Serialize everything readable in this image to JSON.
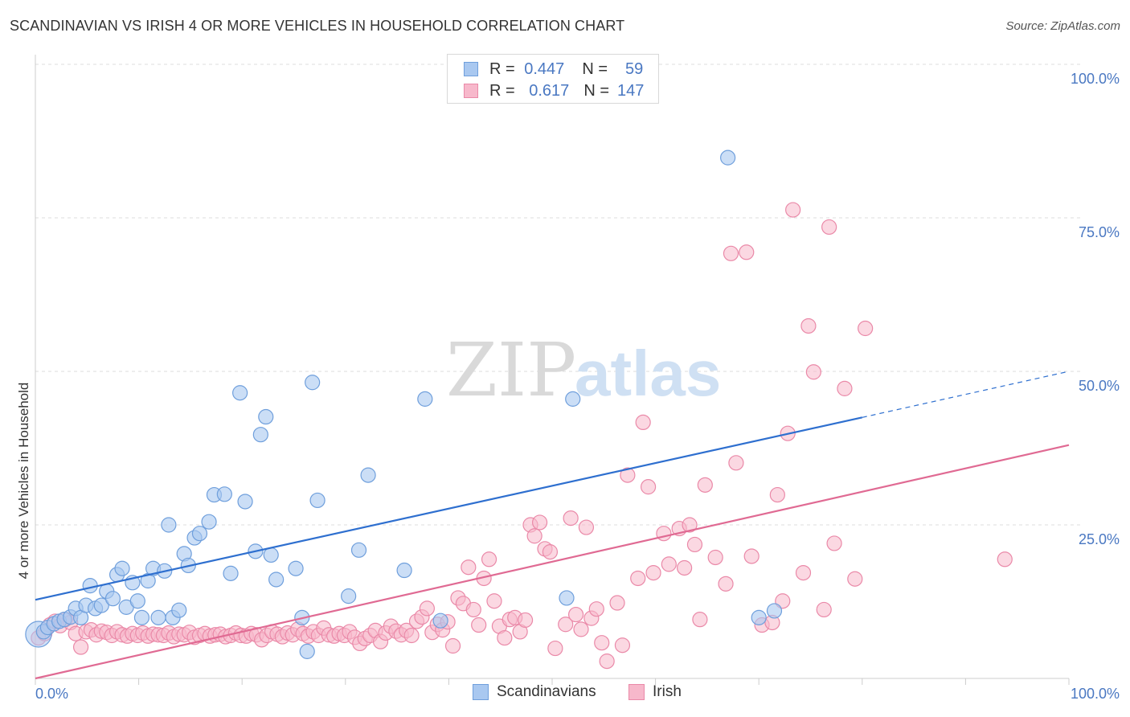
{
  "title": "SCANDINAVIAN VS IRISH 4 OR MORE VEHICLES IN HOUSEHOLD CORRELATION CHART",
  "source": "Source: ZipAtlas.com",
  "watermark": {
    "zip": "ZIP",
    "atlas": "atlas"
  },
  "legend": {
    "rows": [
      {
        "r_label": "R =",
        "r_value": "0.447",
        "n_label": "N =",
        "n_value": "59"
      },
      {
        "r_label": "R =",
        "r_value": "0.617",
        "n_label": "N =",
        "n_value": "147"
      }
    ]
  },
  "bottom_legend": {
    "series1": "Scandinavians",
    "series2": "Irish"
  },
  "colors": {
    "blue_fill": "#a9c8f0",
    "blue_stroke": "#6f9fdc",
    "blue_line": "#2e6fcf",
    "pink_fill": "#f7b8cb",
    "pink_stroke": "#ea89a8",
    "pink_line": "#e06a93",
    "grid": "#dddddd",
    "tick_text": "#4a78c2"
  },
  "chart_data": {
    "type": "scatter",
    "title": "SCANDINAVIAN VS IRISH 4 OR MORE VEHICLES IN HOUSEHOLD CORRELATION CHART",
    "xlabel": "",
    "ylabel": "4 or more Vehicles in Household",
    "xlim": [
      0,
      100
    ],
    "ylim": [
      0,
      100
    ],
    "x_tick_labels": [
      "0.0%",
      "100.0%"
    ],
    "y_tick_labels": [
      "100.0%",
      "75.0%",
      "50.0%",
      "25.0%"
    ],
    "y_ticks": [
      100,
      75,
      50,
      25
    ],
    "grid": true,
    "legend_position": "top-center",
    "series": [
      {
        "name": "Scandinavians",
        "R": 0.447,
        "N": 59,
        "trend": {
          "x0": 0,
          "y0": 12.8,
          "x1": 80,
          "y1": 42.5,
          "dashed_to_x": 100,
          "dashed_to_y": 50.0
        },
        "points": [
          [
            0.3,
            7.2
          ],
          [
            0.8,
            7.6
          ],
          [
            1.2,
            8.3
          ],
          [
            1.8,
            8.9
          ],
          [
            2.3,
            9.3
          ],
          [
            2.8,
            9.6
          ],
          [
            3.4,
            10.0
          ],
          [
            3.9,
            11.4
          ],
          [
            4.4,
            9.9
          ],
          [
            4.9,
            11.9
          ],
          [
            5.3,
            15.1
          ],
          [
            5.8,
            11.4
          ],
          [
            6.4,
            11.9
          ],
          [
            6.9,
            14.2
          ],
          [
            7.5,
            13.0
          ],
          [
            7.9,
            16.9
          ],
          [
            8.4,
            17.9
          ],
          [
            8.8,
            11.6
          ],
          [
            9.4,
            15.6
          ],
          [
            9.9,
            12.6
          ],
          [
            10.3,
            9.9
          ],
          [
            10.9,
            15.9
          ],
          [
            11.4,
            17.9
          ],
          [
            11.9,
            9.9
          ],
          [
            12.5,
            17.5
          ],
          [
            12.9,
            25.0
          ],
          [
            13.3,
            9.9
          ],
          [
            13.9,
            11.1
          ],
          [
            14.4,
            20.3
          ],
          [
            14.8,
            18.4
          ],
          [
            15.4,
            22.9
          ],
          [
            15.9,
            23.6
          ],
          [
            16.8,
            25.5
          ],
          [
            17.3,
            29.9
          ],
          [
            18.3,
            30.0
          ],
          [
            18.9,
            17.1
          ],
          [
            19.8,
            46.5
          ],
          [
            20.3,
            28.8
          ],
          [
            21.3,
            20.7
          ],
          [
            21.8,
            39.7
          ],
          [
            22.3,
            42.6
          ],
          [
            22.8,
            20.1
          ],
          [
            23.3,
            16.1
          ],
          [
            25.2,
            17.9
          ],
          [
            25.8,
            9.9
          ],
          [
            26.8,
            48.2
          ],
          [
            26.3,
            4.4
          ],
          [
            27.3,
            29.0
          ],
          [
            30.3,
            13.4
          ],
          [
            31.3,
            20.9
          ],
          [
            32.2,
            33.1
          ],
          [
            35.7,
            17.6
          ],
          [
            37.7,
            45.5
          ],
          [
            39.2,
            9.4
          ],
          [
            51.4,
            13.1
          ],
          [
            52.0,
            45.5
          ],
          [
            67.0,
            84.8
          ],
          [
            70.0,
            9.9
          ],
          [
            71.5,
            11.0
          ]
        ]
      },
      {
        "name": "Irish",
        "R": 0.617,
        "N": 147,
        "trend": {
          "x0": 0,
          "y0": 0.0,
          "x1": 100,
          "y1": 38.0
        },
        "points": [
          [
            0.3,
            6.6
          ],
          [
            0.9,
            7.3
          ],
          [
            1.4,
            8.7
          ],
          [
            1.9,
            9.3
          ],
          [
            2.4,
            8.6
          ],
          [
            2.9,
            9.6
          ],
          [
            3.4,
            9.1
          ],
          [
            3.9,
            7.3
          ],
          [
            4.4,
            5.1
          ],
          [
            4.9,
            7.6
          ],
          [
            5.4,
            7.9
          ],
          [
            5.9,
            7.1
          ],
          [
            6.4,
            7.7
          ],
          [
            6.9,
            7.5
          ],
          [
            7.4,
            7.0
          ],
          [
            7.9,
            7.6
          ],
          [
            8.4,
            7.1
          ],
          [
            8.9,
            6.9
          ],
          [
            9.4,
            7.3
          ],
          [
            9.9,
            7.0
          ],
          [
            10.4,
            7.4
          ],
          [
            10.9,
            6.9
          ],
          [
            11.4,
            7.2
          ],
          [
            11.9,
            7.1
          ],
          [
            12.4,
            7.0
          ],
          [
            12.9,
            7.4
          ],
          [
            13.4,
            6.8
          ],
          [
            13.9,
            7.2
          ],
          [
            14.4,
            7.1
          ],
          [
            14.9,
            7.5
          ],
          [
            15.4,
            6.7
          ],
          [
            15.9,
            7.0
          ],
          [
            16.4,
            7.3
          ],
          [
            16.9,
            6.9
          ],
          [
            17.4,
            7.1
          ],
          [
            17.9,
            7.2
          ],
          [
            18.4,
            6.8
          ],
          [
            18.9,
            7.0
          ],
          [
            19.4,
            7.4
          ],
          [
            19.9,
            7.0
          ],
          [
            20.4,
            6.9
          ],
          [
            20.9,
            7.3
          ],
          [
            21.4,
            7.1
          ],
          [
            21.9,
            6.3
          ],
          [
            22.4,
            7.0
          ],
          [
            22.9,
            7.6
          ],
          [
            23.4,
            7.2
          ],
          [
            23.9,
            6.8
          ],
          [
            24.4,
            7.4
          ],
          [
            24.9,
            7.1
          ],
          [
            25.4,
            8.0
          ],
          [
            25.9,
            7.3
          ],
          [
            26.4,
            6.9
          ],
          [
            26.9,
            7.6
          ],
          [
            27.4,
            7.0
          ],
          [
            27.9,
            8.2
          ],
          [
            28.4,
            7.1
          ],
          [
            28.9,
            6.9
          ],
          [
            29.4,
            7.3
          ],
          [
            29.9,
            7.0
          ],
          [
            30.4,
            7.6
          ],
          [
            30.9,
            6.7
          ],
          [
            31.4,
            5.7
          ],
          [
            31.9,
            6.5
          ],
          [
            32.4,
            7.0
          ],
          [
            32.9,
            7.8
          ],
          [
            33.4,
            6.0
          ],
          [
            33.9,
            7.4
          ],
          [
            34.4,
            8.5
          ],
          [
            34.9,
            7.7
          ],
          [
            35.4,
            7.1
          ],
          [
            35.9,
            7.8
          ],
          [
            36.4,
            7.0
          ],
          [
            36.9,
            9.3
          ],
          [
            37.4,
            10.0
          ],
          [
            37.9,
            11.4
          ],
          [
            38.4,
            7.5
          ],
          [
            38.9,
            8.8
          ],
          [
            39.4,
            7.9
          ],
          [
            39.9,
            9.2
          ],
          [
            40.4,
            5.3
          ],
          [
            40.9,
            13.1
          ],
          [
            41.4,
            12.2
          ],
          [
            41.9,
            18.1
          ],
          [
            42.4,
            11.2
          ],
          [
            42.9,
            8.7
          ],
          [
            43.4,
            16.3
          ],
          [
            43.9,
            19.4
          ],
          [
            44.4,
            12.6
          ],
          [
            44.9,
            8.5
          ],
          [
            45.4,
            6.6
          ],
          [
            45.9,
            9.6
          ],
          [
            46.4,
            9.9
          ],
          [
            46.9,
            7.6
          ],
          [
            47.4,
            9.5
          ],
          [
            47.9,
            25.0
          ],
          [
            48.3,
            23.2
          ],
          [
            48.8,
            25.4
          ],
          [
            49.3,
            21.1
          ],
          [
            49.8,
            20.6
          ],
          [
            50.3,
            4.9
          ],
          [
            51.3,
            8.8
          ],
          [
            51.8,
            26.1
          ],
          [
            52.3,
            10.4
          ],
          [
            52.8,
            8.0
          ],
          [
            53.3,
            24.6
          ],
          [
            53.8,
            9.8
          ],
          [
            54.3,
            11.3
          ],
          [
            54.8,
            5.8
          ],
          [
            55.3,
            2.8
          ],
          [
            56.3,
            12.3
          ],
          [
            56.8,
            5.4
          ],
          [
            57.3,
            33.1
          ],
          [
            58.3,
            16.3
          ],
          [
            58.8,
            41.7
          ],
          [
            59.3,
            31.2
          ],
          [
            59.8,
            17.2
          ],
          [
            60.8,
            23.6
          ],
          [
            61.3,
            18.6
          ],
          [
            62.3,
            24.4
          ],
          [
            62.8,
            18.0
          ],
          [
            63.3,
            25.0
          ],
          [
            63.8,
            21.8
          ],
          [
            64.3,
            9.6
          ],
          [
            64.8,
            31.5
          ],
          [
            65.8,
            19.7
          ],
          [
            66.8,
            15.4
          ],
          [
            67.3,
            69.2
          ],
          [
            67.8,
            35.1
          ],
          [
            68.8,
            69.4
          ],
          [
            69.3,
            19.9
          ],
          [
            70.3,
            8.7
          ],
          [
            71.3,
            9.1
          ],
          [
            71.8,
            29.9
          ],
          [
            72.3,
            12.6
          ],
          [
            72.8,
            39.9
          ],
          [
            73.3,
            76.3
          ],
          [
            74.3,
            17.2
          ],
          [
            74.8,
            57.4
          ],
          [
            75.3,
            49.9
          ],
          [
            76.3,
            11.2
          ],
          [
            76.8,
            73.5
          ],
          [
            77.3,
            22.0
          ],
          [
            78.3,
            47.2
          ],
          [
            79.3,
            16.2
          ],
          [
            80.3,
            57.0
          ],
          [
            93.8,
            19.4
          ]
        ]
      }
    ]
  }
}
